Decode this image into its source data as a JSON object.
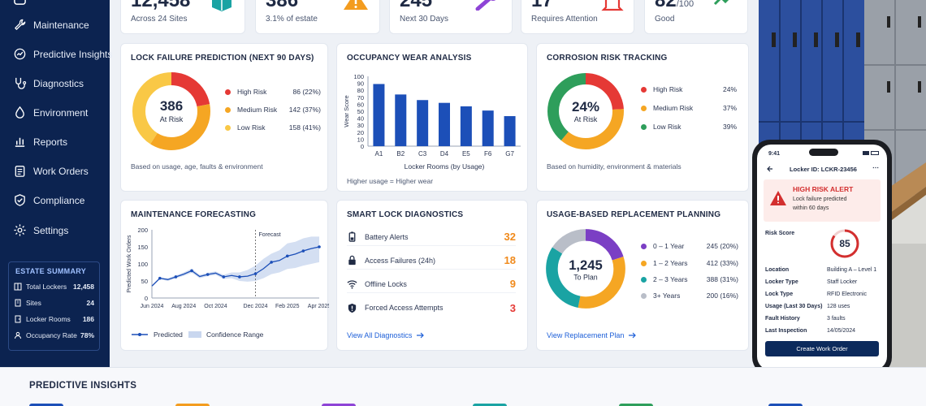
{
  "sidebar": {
    "items": [
      {
        "label": "Maintenance",
        "icon": "wrench-icon"
      },
      {
        "label": "Predictive Insights",
        "icon": "insights-icon"
      },
      {
        "label": "Diagnostics",
        "icon": "diagnostics-icon"
      },
      {
        "label": "Environment",
        "icon": "droplet-icon"
      },
      {
        "label": "Reports",
        "icon": "reports-icon"
      },
      {
        "label": "Work Orders",
        "icon": "clipboard-icon"
      },
      {
        "label": "Compliance",
        "icon": "shield-check-icon"
      },
      {
        "label": "Settings",
        "icon": "gear-icon"
      }
    ],
    "summary": {
      "title": "ESTATE SUMMARY",
      "rows": [
        {
          "label": "Total Lockers",
          "value": "12,458"
        },
        {
          "label": "Sites",
          "value": "24"
        },
        {
          "label": "Locker Rooms",
          "value": "186"
        },
        {
          "label": "Occupancy Rate",
          "value": "78%"
        }
      ]
    }
  },
  "kpis": [
    {
      "value": "12,458",
      "sub": "Across 24 Sites",
      "icon": "locker-icon",
      "color": "#1aa3a3"
    },
    {
      "value": "386",
      "sub": "3.1% of estate",
      "icon": "warning-icon",
      "color": "#f39c1f"
    },
    {
      "value": "245",
      "sub": "Next 30 Days",
      "icon": "wrench-icon",
      "color": "#8e44d6"
    },
    {
      "value": "17",
      "sub": "Requires Attention",
      "icon": "bell-icon",
      "color": "#e53935"
    },
    {
      "value": "82",
      "value_suffix": "/100",
      "sub": "Good",
      "icon": "trend-icon",
      "color": "#2e9e5b"
    }
  ],
  "lock_failure": {
    "title": "LOCK FAILURE PREDICTION (NEXT 90 DAYS)",
    "center_value": "386",
    "center_label": "At Risk",
    "segments": [
      {
        "label": "High Risk",
        "value": "86 (22%)",
        "pct": 22,
        "color": "#e53935"
      },
      {
        "label": "Medium Risk",
        "value": "142 (37%)",
        "pct": 37,
        "color": "#f5a623"
      },
      {
        "label": "Low Risk",
        "value": "158 (41%)",
        "pct": 41,
        "color": "#f9c846"
      }
    ],
    "footnote": "Based on usage, age, faults & environment"
  },
  "occupancy": {
    "title": "OCCUPANCY WEAR ANALYSIS",
    "footnote": "Higher usage = Higher wear"
  },
  "corrosion": {
    "title": "CORROSION RISK TRACKING",
    "center_value": "24%",
    "center_label": "At Risk",
    "segments": [
      {
        "label": "High Risk",
        "value": "24%",
        "pct": 24,
        "color": "#e53935"
      },
      {
        "label": "Medium Risk",
        "value": "37%",
        "pct": 37,
        "color": "#f5a623"
      },
      {
        "label": "Low Risk",
        "value": "39%",
        "pct": 39,
        "color": "#2e9e5b"
      }
    ],
    "footnote": "Based on humidity, environment & materials"
  },
  "forecast": {
    "title": "MAINTENANCE FORECASTING",
    "forecast_label": "Forecast",
    "legend_predicted": "Predicted",
    "legend_confidence": "Confidence Range"
  },
  "diagnostics": {
    "title": "SMART LOCK DIAGNOSTICS",
    "rows": [
      {
        "label": "Battery Alerts",
        "value": "32",
        "icon": "battery-icon",
        "color": "#f08a1c"
      },
      {
        "label": "Access Failures (24h)",
        "value": "18",
        "icon": "lock-icon",
        "color": "#f08a1c"
      },
      {
        "label": "Offline Locks",
        "value": "9",
        "icon": "wifi-icon",
        "color": "#f08a1c"
      },
      {
        "label": "Forced Access Attempts",
        "value": "3",
        "icon": "shield-alert-icon",
        "color": "#e53935"
      }
    ],
    "link": "View All Diagnostics"
  },
  "replacement": {
    "title": "USAGE-BASED REPLACEMENT PLANNING",
    "center_value": "1,245",
    "center_label": "To Plan",
    "segments": [
      {
        "label": "0 – 1 Year",
        "value": "245 (20%)",
        "pct": 20,
        "color": "#7b3fc4"
      },
      {
        "label": "1 – 2 Years",
        "value": "412 (33%)",
        "pct": 33,
        "color": "#f5a623"
      },
      {
        "label": "2 – 3 Years",
        "value": "388 (31%)",
        "pct": 31,
        "color": "#1aa3a3"
      },
      {
        "label": "3+ Years",
        "value": "200 (16%)",
        "pct": 16,
        "color": "#b9bec8"
      }
    ],
    "link": "View Replacement Plan"
  },
  "phone": {
    "time": "9:41",
    "header": "Locker ID: LCKR-23456",
    "alert_title": "HIGH RISK ALERT",
    "alert_text_1": "Lock failure predicted",
    "alert_text_2": "within 60 days",
    "risk_label": "Risk Score",
    "risk_value": "85",
    "details": [
      {
        "k": "Location",
        "v": "Building A – Level 1"
      },
      {
        "k": "Locker Type",
        "v": "Staff Locker"
      },
      {
        "k": "Lock Type",
        "v": "RFID Electronic"
      },
      {
        "k": "Usage (Last 30 Days)",
        "v": "128 uses"
      },
      {
        "k": "Fault History",
        "v": "3 faults"
      },
      {
        "k": "Last Inspection",
        "v": "14/05/2024"
      }
    ],
    "button": "Create Work Order"
  },
  "bottom": {
    "title": "PREDICTIVE INSIGHTS"
  },
  "chart_data": [
    {
      "type": "bar",
      "title": "OCCUPANCY WEAR ANALYSIS",
      "xlabel": "Locker Rooms (by Usage)",
      "ylabel": "Wear Score",
      "categories": [
        "A1",
        "B2",
        "C3",
        "D4",
        "E5",
        "F6",
        "G7"
      ],
      "values": [
        89,
        74,
        66,
        62,
        57,
        51,
        43
      ],
      "ylim": [
        0,
        100
      ],
      "yticks": [
        "0",
        "10",
        "20",
        "30",
        "40",
        "50",
        "60",
        "70",
        "80",
        "90",
        "100"
      ],
      "color": "#1c4fb8"
    },
    {
      "type": "line",
      "title": "MAINTENANCE FORECASTING",
      "ylabel": "Predicted Work Orders",
      "xticks": [
        "Jun 2024",
        "Aug 2024",
        "Oct 2024",
        "Dec 2024",
        "Feb 2025",
        "Apr 2025"
      ],
      "yticks": [
        "0",
        "50",
        "100",
        "150",
        "200"
      ],
      "ylim": [
        0,
        200
      ],
      "x": [
        0,
        1,
        2,
        3,
        4,
        5,
        6,
        7,
        8,
        9,
        10,
        11,
        12,
        13,
        14,
        15,
        16,
        17,
        18,
        19,
        20,
        21
      ],
      "series": [
        {
          "name": "Predicted",
          "values": [
            35,
            58,
            54,
            62,
            70,
            80,
            63,
            69,
            73,
            62,
            66,
            62,
            64,
            71,
            86,
            105,
            110,
            123,
            129,
            138,
            145,
            150
          ]
        },
        {
          "name": "Confidence Range",
          "upper": [
            38,
            61,
            58,
            66,
            75,
            86,
            68,
            74,
            78,
            68,
            75,
            75,
            82,
            95,
            115,
            130,
            140,
            160,
            165,
            175,
            180,
            180
          ],
          "lower": [
            32,
            55,
            50,
            58,
            65,
            74,
            58,
            64,
            68,
            56,
            58,
            50,
            48,
            50,
            58,
            70,
            75,
            85,
            88,
            95,
            100,
            105
          ]
        }
      ],
      "forecast_start_index": 13,
      "color": "#1c4fb8"
    }
  ]
}
